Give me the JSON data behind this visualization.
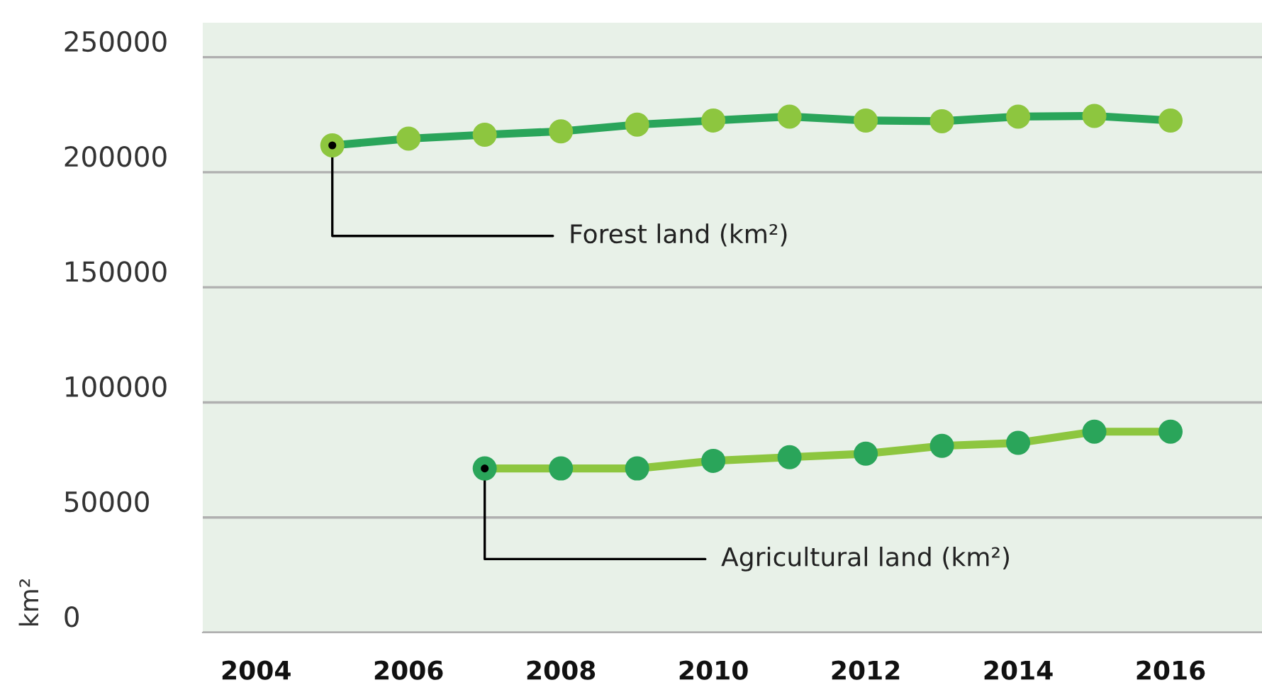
{
  "chart_data": {
    "type": "line",
    "ylabel": "km²",
    "x": [
      2005,
      2006,
      2007,
      2008,
      2009,
      2010,
      2011,
      2012,
      2013,
      2014,
      2015,
      2016
    ],
    "series": [
      {
        "color": "#2aa55a",
        "colors": [
          "#8dc63f",
          "#8dc63f",
          "#8dc63f",
          "#8dc63f",
          "#8dc63f",
          "#8dc63f",
          "#8dc63f",
          "#8dc63f",
          "#8dc63f",
          "#8dc63f",
          "#8dc63f",
          "#8dc63f"
        ],
        "values": [
          211700,
          214600,
          216300,
          217800,
          220700,
          222500,
          224200,
          222500,
          222200,
          224200,
          224500,
          222500
        ]
      },
      {
        "color": "#8dc63f",
        "colors": [
          null,
          null,
          "#2aa55a",
          "#2aa55a",
          "#2aa55a",
          "#2aa55a",
          "#2aa55a",
          "#2aa55a",
          "#2aa55a",
          "#2aa55a",
          "#2aa55a",
          "#2aa55a"
        ],
        "values": [
          null,
          null,
          71300,
          71300,
          71300,
          74600,
          76200,
          77700,
          81100,
          82400,
          87300,
          87300
        ]
      }
    ],
    "annotations": [
      {
        "text": "Forest land (km²)",
        "x": 2005,
        "y": 211700
      },
      {
        "text": "Agricultural land (km²)",
        "x": 2007,
        "y": 71300
      }
    ],
    "xlim": [
      2003.3,
      2017.2
    ],
    "xticks": [
      2004,
      2006,
      2008,
      2010,
      2012,
      2014,
      2016
    ],
    "ylim": [
      0,
      265000
    ],
    "yticks": [
      0,
      50000,
      100000,
      150000,
      200000,
      250000
    ],
    "grid": "y",
    "marker": "circle",
    "line_style": "solid"
  }
}
